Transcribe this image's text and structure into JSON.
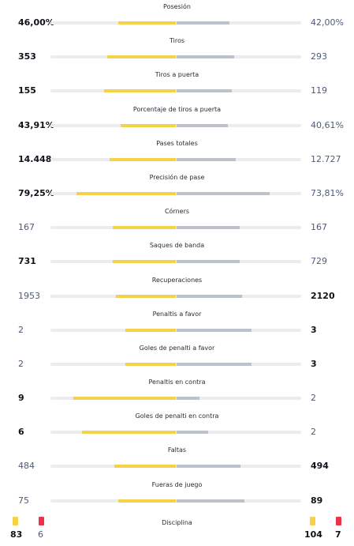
{
  "stats": [
    {
      "label": "Posesión",
      "home": "46,00%",
      "away": "42,00%",
      "home_bar": 0.46,
      "away_bar": 0.42,
      "winner": "home"
    },
    {
      "label": "Tiros",
      "home": "353",
      "away": "293",
      "home_bar": 0.55,
      "away_bar": 0.46,
      "winner": "home"
    },
    {
      "label": "Tiros a puerta",
      "home": "155",
      "away": "119",
      "home_bar": 0.57,
      "away_bar": 0.44,
      "winner": "home"
    },
    {
      "label": "Porcentaje de tiros a puerta",
      "home": "43,91%",
      "away": "40,61%",
      "home_bar": 0.44,
      "away_bar": 0.41,
      "winner": "home"
    },
    {
      "label": "Pases totales",
      "home": "14.448",
      "away": "12.727",
      "home_bar": 0.53,
      "away_bar": 0.47,
      "winner": "home"
    },
    {
      "label": "Precisión de pase",
      "home": "79,25%",
      "away": "73,81%",
      "home_bar": 0.79,
      "away_bar": 0.74,
      "winner": "home"
    },
    {
      "label": "Córners",
      "home": "167",
      "away": "167",
      "home_bar": 0.5,
      "away_bar": 0.5,
      "winner": "none"
    },
    {
      "label": "Saques de banda",
      "home": "731",
      "away": "729",
      "home_bar": 0.5,
      "away_bar": 0.5,
      "winner": "home"
    },
    {
      "label": "Recuperaciones",
      "home": "1953",
      "away": "2120",
      "home_bar": 0.48,
      "away_bar": 0.52,
      "winner": "away"
    },
    {
      "label": "Penaltis a favor",
      "home": "2",
      "away": "3",
      "home_bar": 0.4,
      "away_bar": 0.6,
      "winner": "away"
    },
    {
      "label": "Goles de penalti a favor",
      "home": "2",
      "away": "3",
      "home_bar": 0.4,
      "away_bar": 0.6,
      "winner": "away"
    },
    {
      "label": "Penaltis en contra",
      "home": "9",
      "away": "2",
      "home_bar": 0.82,
      "away_bar": 0.18,
      "winner": "home"
    },
    {
      "label": "Goles de penalti en contra",
      "home": "6",
      "away": "2",
      "home_bar": 0.75,
      "away_bar": 0.25,
      "winner": "home"
    },
    {
      "label": "Faltas",
      "home": "484",
      "away": "494",
      "home_bar": 0.49,
      "away_bar": 0.51,
      "winner": "away"
    },
    {
      "label": "Fueras de juego",
      "home": "75",
      "away": "89",
      "home_bar": 0.46,
      "away_bar": 0.54,
      "winner": "away"
    }
  ],
  "discipline": {
    "label": "Disciplina",
    "home_yellow": "83",
    "home_red": "6",
    "away_yellow": "104",
    "away_red": "7"
  },
  "colors": {
    "home_bar": "#f5d24a",
    "away_bar": "#bcc2cb",
    "track": "#ececef",
    "yellow_card": "#f5d24a",
    "red_card": "#e8334a"
  }
}
